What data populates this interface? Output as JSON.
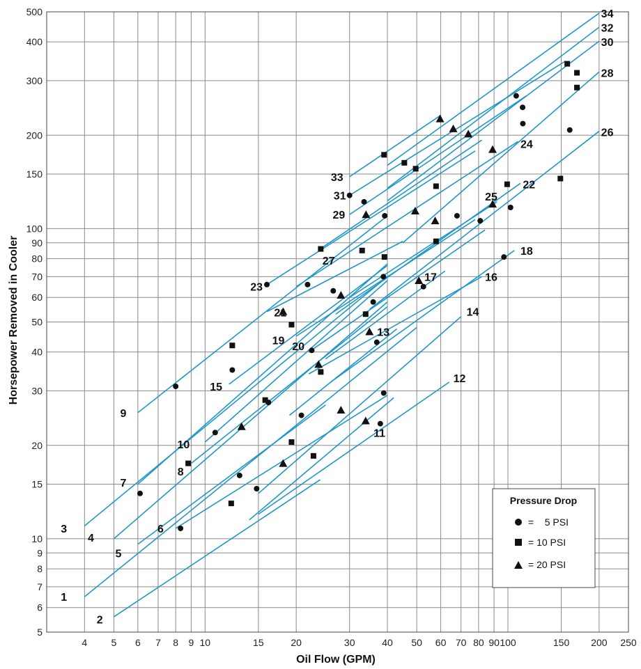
{
  "chart_data": {
    "type": "line",
    "xlabel": "Oil Flow (GPM)",
    "ylabel": "Horsepower Removed in Cooler",
    "x_scale": "log",
    "y_scale": "log",
    "xlim": [
      3,
      250
    ],
    "ylim": [
      5,
      500
    ],
    "grid": true,
    "x_ticks": [
      "4",
      "5",
      "6",
      "7",
      "8",
      "9",
      "10",
      "15",
      "20",
      "30",
      "40",
      "50",
      "60",
      "70",
      "80",
      "90",
      "100",
      "150",
      "200",
      "250"
    ],
    "y_ticks": [
      "5",
      "6",
      "7",
      "8",
      "9",
      "10",
      "15",
      "20",
      "30",
      "40",
      "50",
      "60",
      "70",
      "80",
      "90",
      "100",
      "150",
      "200",
      "300",
      "400",
      "500"
    ],
    "legend": {
      "title": "Pressure Drop",
      "placement": "bottom-right",
      "entries": [
        {
          "marker": "circle",
          "text": "=    5 PSI"
        },
        {
          "marker": "square",
          "text": "= 10 PSI"
        },
        {
          "marker": "triangle",
          "text": "= 20 PSI"
        }
      ]
    },
    "series": [
      {
        "name": "1",
        "line": [
          [
            4,
            6.5
          ],
          [
            50,
            48
          ]
        ],
        "label_at": [
          3.5,
          6.5
        ]
      },
      {
        "name": "2",
        "line": [
          [
            5,
            5.6
          ],
          [
            24,
            15.5
          ]
        ],
        "label_at": [
          4.6,
          5.5
        ]
      },
      {
        "name": "3",
        "line": [
          [
            4,
            11
          ],
          [
            40,
            70
          ]
        ],
        "label_at": [
          3.5,
          10.8
        ]
      },
      {
        "name": "4",
        "line": [
          [
            5,
            10
          ],
          [
            40,
            58
          ]
        ],
        "label_at": [
          4.3,
          10.1
        ]
      },
      {
        "name": "5",
        "line": [
          [
            6,
            9.6
          ],
          [
            25,
            27
          ]
        ],
        "label_at": [
          5.3,
          9
        ]
      },
      {
        "name": "6",
        "line": [
          [
            8,
            10.8
          ],
          [
            40,
            29
          ]
        ],
        "label_at": [
          7.3,
          10.8
        ]
      },
      {
        "name": "7",
        "line": [
          [
            6,
            15
          ],
          [
            40,
            77
          ]
        ],
        "label_at": [
          5.5,
          15.2
        ]
      },
      {
        "name": "8",
        "line": [
          [
            9,
            17.5
          ],
          [
            40,
            56
          ]
        ],
        "label_at": [
          8.5,
          16.5
        ]
      },
      {
        "name": "9",
        "line": [
          [
            6,
            25.5
          ],
          [
            40,
            110
          ]
        ],
        "label_at": [
          5.5,
          25.5
        ]
      },
      {
        "name": "10",
        "line": [
          [
            10,
            20.5
          ],
          [
            40,
            68
          ]
        ],
        "label_at": [
          8.9,
          20.2
        ]
      },
      {
        "name": "11",
        "line": [
          [
            14,
            11.5
          ],
          [
            42,
            28.5
          ]
        ],
        "label_at": [
          36,
          22
        ]
      },
      {
        "name": "12",
        "line": [
          [
            15,
            12
          ],
          [
            64,
            32
          ]
        ],
        "label_at": [
          66,
          33
        ]
      },
      {
        "name": "13",
        "line": [
          [
            19,
            25
          ],
          [
            43,
            47.5
          ]
        ],
        "label_at": [
          37,
          46.5
        ]
      },
      {
        "name": "14",
        "line": [
          [
            15,
            14
          ],
          [
            70,
            52
          ]
        ],
        "label_at": [
          73,
          54
        ]
      },
      {
        "name": "15",
        "line": [
          [
            12,
            31.5
          ],
          [
            40,
            76
          ]
        ],
        "label_at": [
          11.4,
          31
        ]
      },
      {
        "name": "16",
        "line": [
          [
            22,
            34
          ],
          [
            82,
            70
          ]
        ],
        "label_at": [
          84,
          70
        ]
      },
      {
        "name": "17",
        "line": [
          [
            25,
            38
          ],
          [
            62,
            73
          ]
        ],
        "label_at": [
          53,
          70
        ]
      },
      {
        "name": "18",
        "line": [
          [
            26,
            32
          ],
          [
            105,
            85
          ]
        ],
        "label_at": [
          110,
          85
        ]
      },
      {
        "name": "19",
        "line": [
          [
            20,
            45
          ],
          [
            78,
            107
          ]
        ],
        "label_at": [
          18.3,
          43.7
        ]
      },
      {
        "name": "20",
        "line": [
          [
            22,
            40
          ],
          [
            84,
            99
          ]
        ],
        "label_at": [
          21.3,
          41.8
        ]
      },
      {
        "name": "21",
        "line": [
          [
            16,
            54
          ],
          [
            45,
            91
          ]
        ],
        "label_at": [
          16.9,
          53.8
        ]
      },
      {
        "name": "22",
        "line": [
          [
            27,
            53
          ],
          [
            110,
            140
          ]
        ],
        "label_at": [
          112,
          139
        ]
      },
      {
        "name": "23",
        "line": [
          [
            16,
            66
          ],
          [
            78,
            178
          ]
        ],
        "label_at": [
          15.5,
          65
        ]
      },
      {
        "name": "24",
        "line": [
          [
            20,
            65
          ],
          [
            108,
            191
          ]
        ],
        "label_at": [
          110,
          188
        ]
      },
      {
        "name": "25",
        "line": [
          [
            30,
            60
          ],
          [
            92,
            122
          ]
        ],
        "label_at": [
          84,
          127
        ]
      },
      {
        "name": "26",
        "line": [
          [
            35,
            55
          ],
          [
            200,
            206
          ]
        ],
        "label_at": [
          203,
          205
        ]
      },
      {
        "name": "27",
        "line": [
          [
            24,
            86
          ],
          [
            82,
            193
          ]
        ],
        "label_at": [
          24.4,
          79
        ]
      },
      {
        "name": "28",
        "line": [
          [
            45,
            90
          ],
          [
            200,
            320
          ]
        ],
        "label_at": [
          203,
          318
        ]
      },
      {
        "name": "29",
        "line": [
          [
            30,
            111
          ],
          [
            115,
            268
          ]
        ],
        "label_at": [
          29,
          111
        ]
      },
      {
        "name": "30",
        "line": [
          [
            40,
            123
          ],
          [
            200,
            402
          ]
        ],
        "label_at": [
          203,
          400
        ]
      },
      {
        "name": "31",
        "line": [
          [
            30,
            128
          ],
          [
            155,
            347
          ]
        ],
        "label_at": [
          29.2,
          128
        ]
      },
      {
        "name": "32",
        "line": [
          [
            40,
            135
          ],
          [
            200,
            446
          ]
        ],
        "label_at": [
          203,
          445
        ]
      },
      {
        "name": "33",
        "line": [
          [
            30,
            147
          ],
          [
            60,
            232
          ]
        ],
        "label_at": [
          28.6,
          147
        ]
      },
      {
        "name": "34",
        "line": [
          [
            40,
            160
          ],
          [
            200,
            495
          ]
        ],
        "label_at": [
          203,
          495
        ]
      }
    ],
    "markers": [
      {
        "shape": "circle",
        "points": [
          [
            6.1,
            14
          ],
          [
            8.3,
            10.8
          ],
          [
            8,
            31
          ],
          [
            10.8,
            22
          ],
          [
            12.3,
            35
          ],
          [
            13,
            16
          ],
          [
            14.8,
            14.5
          ],
          [
            16.2,
            27.5
          ],
          [
            20.8,
            25
          ],
          [
            16,
            66
          ],
          [
            21.8,
            66
          ],
          [
            22.5,
            40.5
          ],
          [
            26.5,
            63
          ],
          [
            35.9,
            58
          ],
          [
            36.9,
            43
          ],
          [
            37.9,
            23.5
          ],
          [
            38.9,
            29.5
          ],
          [
            38.8,
            70
          ],
          [
            39.2,
            110
          ],
          [
            30,
            128
          ],
          [
            33.5,
            122
          ],
          [
            52.6,
            65
          ],
          [
            67.9,
            110
          ],
          [
            81,
            106
          ],
          [
            97,
            81
          ],
          [
            102,
            117
          ],
          [
            106.5,
            268
          ],
          [
            112,
            218
          ],
          [
            111.8,
            246
          ],
          [
            160,
            208
          ]
        ]
      },
      {
        "shape": "square",
        "points": [
          [
            8.8,
            17.5
          ],
          [
            12.3,
            42
          ],
          [
            12.2,
            13
          ],
          [
            15.8,
            28
          ],
          [
            19.3,
            20.5
          ],
          [
            19.3,
            49
          ],
          [
            22.8,
            18.5
          ],
          [
            24.1,
            34.5
          ],
          [
            24.1,
            86
          ],
          [
            33,
            85
          ],
          [
            33.9,
            53
          ],
          [
            39.1,
            81
          ],
          [
            39,
            173
          ],
          [
            45.5,
            163
          ],
          [
            49.6,
            156
          ],
          [
            57.9,
            137
          ],
          [
            57.9,
            91
          ],
          [
            99.4,
            139
          ],
          [
            149,
            145
          ],
          [
            157,
            340
          ],
          [
            169,
            318
          ],
          [
            169,
            285
          ]
        ]
      },
      {
        "shape": "triangle",
        "points": [
          [
            13.2,
            23
          ],
          [
            18.1,
            17.5
          ],
          [
            18.1,
            54
          ],
          [
            23.7,
            36.5
          ],
          [
            28.1,
            61
          ],
          [
            28.1,
            26
          ],
          [
            33.9,
            24
          ],
          [
            34.9,
            46.5
          ],
          [
            34,
            111
          ],
          [
            49.4,
            114
          ],
          [
            50.8,
            68
          ],
          [
            57.5,
            106
          ],
          [
            59.7,
            226
          ],
          [
            66,
            210
          ],
          [
            74,
            202
          ],
          [
            89,
            180
          ],
          [
            89,
            120
          ]
        ]
      }
    ]
  }
}
